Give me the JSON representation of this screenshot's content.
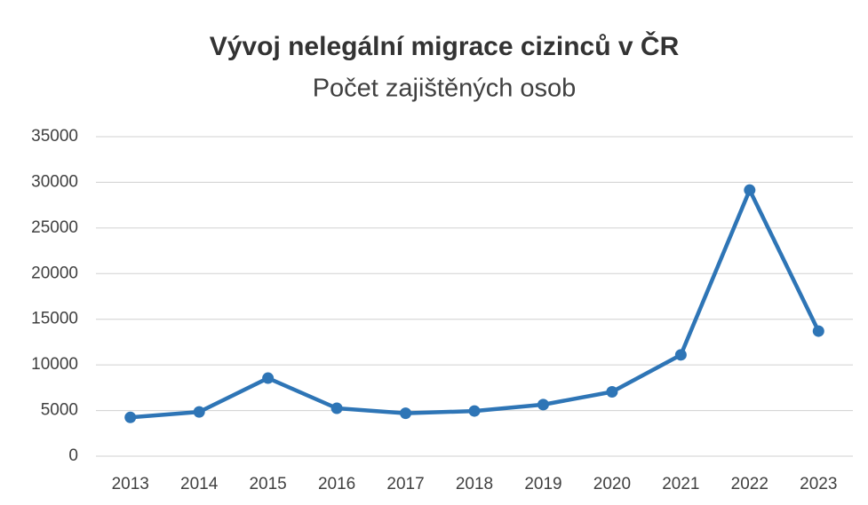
{
  "chart_data": {
    "type": "line",
    "title": "Vývoj nelegální migrace cizinců v ČR",
    "subtitle": "Počet zajištěných osob",
    "categories": [
      "2013",
      "2014",
      "2015",
      "2016",
      "2017",
      "2018",
      "2019",
      "2020",
      "2021",
      "2022",
      "2023"
    ],
    "values": [
      4250,
      4850,
      8550,
      5250,
      4700,
      4950,
      5650,
      7050,
      11100,
      29150,
      13700
    ],
    "color": "#2e75b6",
    "ylim": [
      0,
      35000
    ],
    "yticks": [
      0,
      5000,
      10000,
      15000,
      20000,
      25000,
      30000,
      35000
    ],
    "grid": true
  }
}
